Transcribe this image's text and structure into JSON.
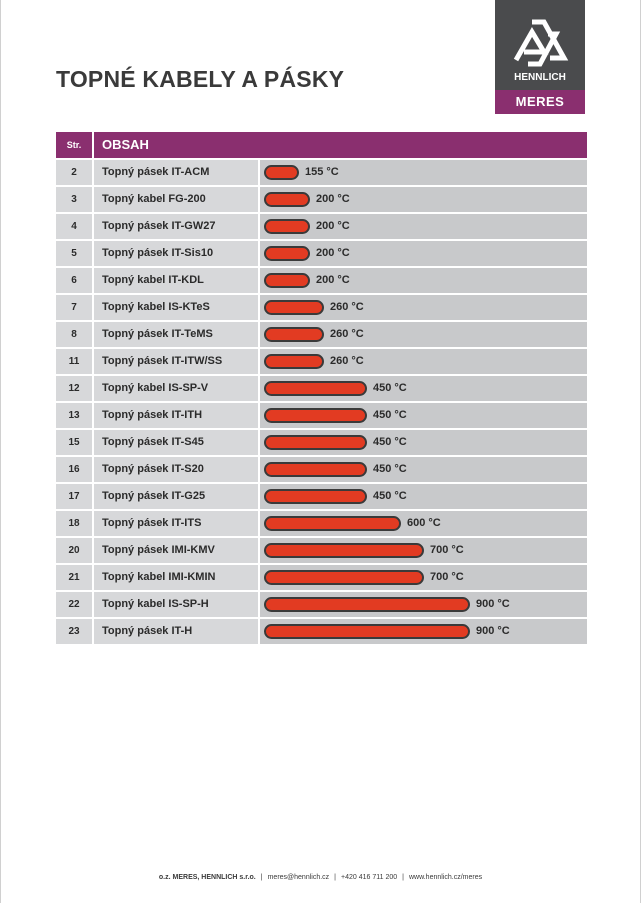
{
  "title": "TOPNÉ KABELY A PÁSKY",
  "logo": {
    "brand": "HENNLICH",
    "division": "MERES"
  },
  "table_header": {
    "str": "Str.",
    "obsah": "OBSAH"
  },
  "max_temp": 900,
  "rows": [
    {
      "page": "2",
      "name": "Topný pásek IT-ACM",
      "temp": 155,
      "temp_label": "155 °C"
    },
    {
      "page": "3",
      "name": "Topný kabel FG-200",
      "temp": 200,
      "temp_label": "200 °C"
    },
    {
      "page": "4",
      "name": "Topný pásek IT-GW27",
      "temp": 200,
      "temp_label": "200 °C"
    },
    {
      "page": "5",
      "name": "Topný pásek IT-Sis10",
      "temp": 200,
      "temp_label": "200 °C"
    },
    {
      "page": "6",
      "name": "Topný kabel IT-KDL",
      "temp": 200,
      "temp_label": "200 °C"
    },
    {
      "page": "7",
      "name": "Topný kabel IS-KTeS",
      "temp": 260,
      "temp_label": "260 °C"
    },
    {
      "page": "8",
      "name": "Topný pásek IT-TeMS",
      "temp": 260,
      "temp_label": "260 °C"
    },
    {
      "page": "11",
      "name": "Topný pásek IT-ITW/SS",
      "temp": 260,
      "temp_label": "260 °C"
    },
    {
      "page": "12",
      "name": "Topný kabel IS-SP-V",
      "temp": 450,
      "temp_label": "450 °C"
    },
    {
      "page": "13",
      "name": "Topný pásek IT-ITH",
      "temp": 450,
      "temp_label": "450 °C"
    },
    {
      "page": "15",
      "name": "Topný pásek IT-S45",
      "temp": 450,
      "temp_label": "450 °C"
    },
    {
      "page": "16",
      "name": "Topný pásek IT-S20",
      "temp": 450,
      "temp_label": "450 °C"
    },
    {
      "page": "17",
      "name": "Topný pásek IT-G25",
      "temp": 450,
      "temp_label": "450 °C"
    },
    {
      "page": "18",
      "name": "Topný pásek IT-ITS",
      "temp": 600,
      "temp_label": "600 °C"
    },
    {
      "page": "20",
      "name": "Topný pásek IMI-KMV",
      "temp": 700,
      "temp_label": "700 °C"
    },
    {
      "page": "21",
      "name": "Topný kabel IMI-KMIN",
      "temp": 700,
      "temp_label": "700 °C"
    },
    {
      "page": "22",
      "name": "Topný kabel IS-SP-H",
      "temp": 900,
      "temp_label": "900 °C"
    },
    {
      "page": "23",
      "name": "Topný pásek IT-H",
      "temp": 900,
      "temp_label": "900 °C"
    }
  ],
  "footer": {
    "company": "o.z. MERES, HENNLICH s.r.o.",
    "email": "meres@hennlich.cz",
    "phone": "+420 416 711 200",
    "web": "www.hennlich.cz/meres"
  },
  "colors": {
    "accent": "#8a2f6f",
    "bar": "#e23b22",
    "logo_bg": "#4a4b4d"
  }
}
